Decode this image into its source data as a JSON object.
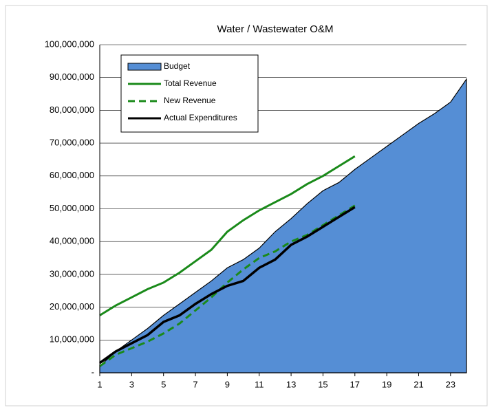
{
  "chart_data": {
    "type": "line",
    "title": "Water / Wastewater O&M",
    "x": [
      1,
      2,
      3,
      4,
      5,
      6,
      7,
      8,
      9,
      10,
      11,
      12,
      13,
      14,
      15,
      16,
      17,
      18,
      19,
      20,
      21,
      22,
      23,
      24
    ],
    "xlim": [
      1,
      24
    ],
    "xticks": [
      1,
      3,
      5,
      7,
      9,
      11,
      13,
      15,
      17,
      19,
      21,
      23
    ],
    "ylim": [
      0,
      100000000
    ],
    "yticks": [
      {
        "value": 0,
        "label": "-"
      },
      {
        "value": 10000000,
        "label": "10,000,000"
      },
      {
        "value": 20000000,
        "label": "20,000,000"
      },
      {
        "value": 30000000,
        "label": "30,000,000"
      },
      {
        "value": 40000000,
        "label": "40,000,000"
      },
      {
        "value": 50000000,
        "label": "50,000,000"
      },
      {
        "value": 60000000,
        "label": "60,000,000"
      },
      {
        "value": 70000000,
        "label": "70,000,000"
      },
      {
        "value": 80000000,
        "label": "80,000,000"
      },
      {
        "value": 90000000,
        "label": "90,000,000"
      },
      {
        "value": 100000000,
        "label": "100,000,000"
      }
    ],
    "grid": true,
    "legend": "top-left",
    "series": [
      {
        "name": "Budget",
        "type": "area",
        "color": "#558ed5",
        "values": [
          2000000,
          6500000,
          10000000,
          13500000,
          17500000,
          21000000,
          24500000,
          28000000,
          32000000,
          34500000,
          38000000,
          43000000,
          47000000,
          51500000,
          55500000,
          58000000,
          62000000,
          65500000,
          69000000,
          72500000,
          76000000,
          79000000,
          82500000,
          89500000
        ]
      },
      {
        "name": "Total Revenue",
        "type": "line",
        "color": "#1a8a1a",
        "values": [
          17500000,
          20500000,
          23000000,
          25500000,
          27500000,
          30500000,
          34000000,
          37500000,
          43000000,
          46500000,
          49500000,
          52000000,
          54500000,
          57500000,
          60000000,
          63000000,
          66000000,
          null,
          null,
          null,
          null,
          null,
          null,
          null
        ]
      },
      {
        "name": "New Revenue",
        "type": "dashed",
        "color": "#1a8a1a",
        "values": [
          2000000,
          5500000,
          7500000,
          9500000,
          12000000,
          15000000,
          19000000,
          23000000,
          27500000,
          31500000,
          35000000,
          37000000,
          40000000,
          42000000,
          45000000,
          48000000,
          51000000,
          null,
          null,
          null,
          null,
          null,
          null,
          null
        ]
      },
      {
        "name": "Actual Expenditures",
        "type": "line",
        "color": "#000000",
        "values": [
          3000000,
          6500000,
          9000000,
          11500000,
          15500000,
          17500000,
          21000000,
          24000000,
          26500000,
          28000000,
          32000000,
          34500000,
          39000000,
          41500000,
          44500000,
          47500000,
          50500000,
          null,
          null,
          null,
          null,
          null,
          null,
          null
        ]
      }
    ]
  }
}
